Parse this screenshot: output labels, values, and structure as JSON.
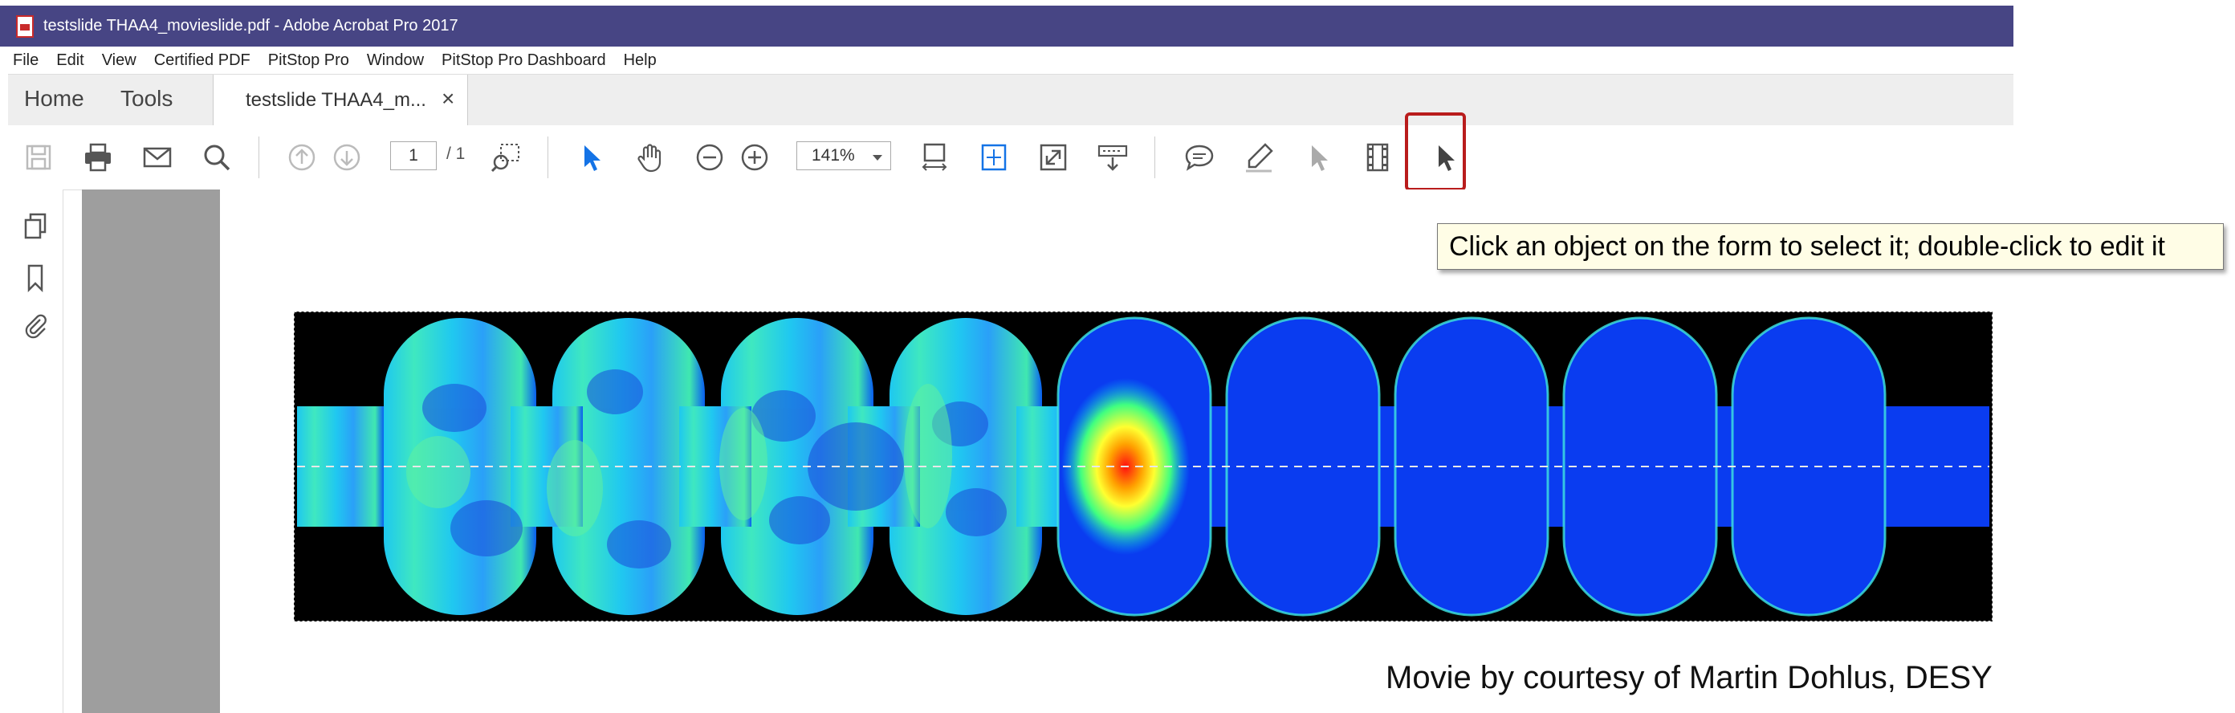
{
  "window": {
    "title": "testslide THAA4_movieslide.pdf - Adobe Acrobat Pro 2017"
  },
  "menu": {
    "items": [
      "File",
      "Edit",
      "View",
      "Certified PDF",
      "PitStop Pro",
      "Window",
      "PitStop Pro Dashboard",
      "Help"
    ]
  },
  "tabs": {
    "home": "Home",
    "tools": "Tools",
    "document": "testslide THAA4_m...",
    "close": "×"
  },
  "toolbar": {
    "page_current": "1",
    "page_total": "/ 1",
    "zoom": "141%"
  },
  "tooltip": {
    "text": "Click an object on the form to select it; double-click to edit it"
  },
  "document": {
    "caption": "Movie by courtesy of Martin Dohlus, DESY"
  },
  "colors": {
    "titlebar": "#474584",
    "highlight_border": "#b91c1c",
    "tooltip_bg": "#fffde6",
    "accent_blue": "#1473e6"
  }
}
